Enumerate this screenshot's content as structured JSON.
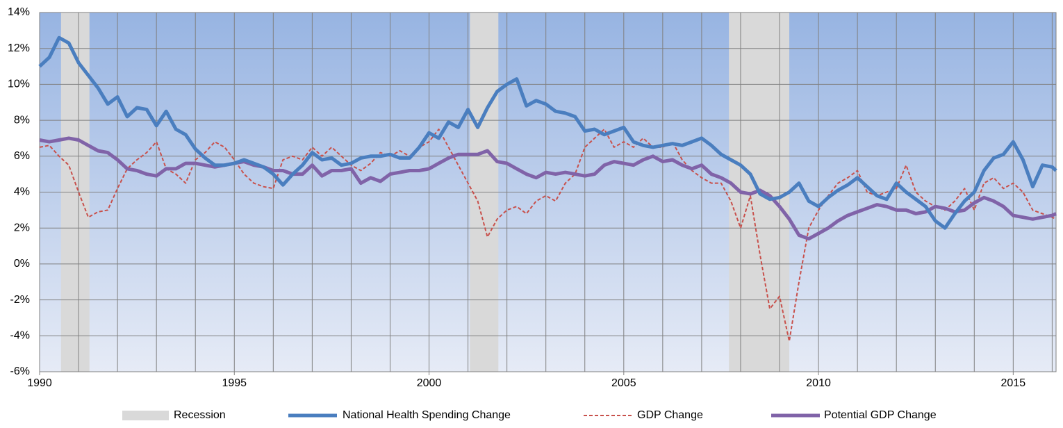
{
  "chart_data": {
    "type": "line",
    "x": [
      1990,
      1990.25,
      1990.5,
      1990.75,
      1991,
      1991.25,
      1991.5,
      1991.75,
      1992,
      1992.25,
      1992.5,
      1992.75,
      1993,
      1993.25,
      1993.5,
      1993.75,
      1994,
      1994.25,
      1994.5,
      1994.75,
      1995,
      1995.25,
      1995.5,
      1995.75,
      1996,
      1996.25,
      1996.5,
      1996.75,
      1997,
      1997.25,
      1997.5,
      1997.75,
      1998,
      1998.25,
      1998.5,
      1998.75,
      1999,
      1999.25,
      1999.5,
      1999.75,
      2000,
      2000.25,
      2000.5,
      2000.75,
      2001,
      2001.25,
      2001.5,
      2001.75,
      2002,
      2002.25,
      2002.5,
      2002.75,
      2003,
      2003.25,
      2003.5,
      2003.75,
      2004,
      2004.25,
      2004.5,
      2004.75,
      2005,
      2005.25,
      2005.5,
      2005.75,
      2006,
      2006.25,
      2006.5,
      2006.75,
      2007,
      2007.25,
      2007.5,
      2007.75,
      2008,
      2008.25,
      2008.5,
      2008.75,
      2009,
      2009.25,
      2009.5,
      2009.75,
      2010,
      2010.25,
      2010.5,
      2010.75,
      2011,
      2011.25,
      2011.5,
      2011.75,
      2012,
      2012.25,
      2012.5,
      2012.75,
      2013,
      2013.25,
      2013.5,
      2013.75,
      2014,
      2014.25,
      2014.5,
      2014.75,
      2015,
      2015.25,
      2015.5,
      2015.75,
      2016,
      2016.1
    ],
    "recession_label": "Recession",
    "recession_color": "#d9d9d9",
    "recessions": [
      {
        "start": 1990.55,
        "end": 1991.28
      },
      {
        "start": 2001.05,
        "end": 2001.78
      },
      {
        "start": 2007.7,
        "end": 2009.25
      }
    ],
    "series": [
      {
        "name": "National Health Spending Change",
        "color": "#4a7ebf",
        "dashed": false,
        "width": 5,
        "values": [
          11.0,
          11.5,
          12.6,
          12.3,
          11.2,
          10.5,
          9.8,
          8.9,
          9.3,
          8.2,
          8.7,
          8.6,
          7.7,
          8.5,
          7.5,
          7.2,
          6.4,
          5.9,
          5.5,
          5.5,
          5.6,
          5.8,
          5.6,
          5.4,
          5.0,
          4.4,
          5.0,
          5.5,
          6.2,
          5.8,
          5.9,
          5.5,
          5.6,
          5.9,
          6.0,
          6.0,
          6.1,
          5.9,
          5.9,
          6.5,
          7.3,
          7.0,
          7.9,
          7.6,
          8.6,
          7.6,
          8.7,
          9.6,
          10.0,
          10.3,
          8.8,
          9.1,
          8.9,
          8.5,
          8.4,
          8.2,
          7.4,
          7.5,
          7.2,
          7.4,
          7.6,
          6.8,
          6.6,
          6.5,
          6.6,
          6.7,
          6.6,
          6.8,
          7.0,
          6.6,
          6.1,
          5.8,
          5.5,
          5.0,
          3.9,
          3.6,
          3.7,
          4.0,
          4.5,
          3.5,
          3.2,
          3.7,
          4.1,
          4.4,
          4.8,
          4.3,
          3.8,
          3.6,
          4.5,
          4.0,
          3.6,
          3.2,
          2.4,
          2.0,
          2.8,
          3.5,
          4.0,
          5.2,
          5.9,
          6.1,
          6.8,
          5.8,
          4.3,
          5.5,
          5.4,
          5.2
        ]
      },
      {
        "name": "GDP Change",
        "color": "#c8504b",
        "dashed": true,
        "width": 2,
        "values": [
          6.5,
          6.6,
          6.0,
          5.5,
          4.0,
          2.6,
          2.9,
          3.0,
          4.2,
          5.3,
          5.8,
          6.2,
          6.8,
          5.3,
          5.0,
          4.5,
          5.8,
          6.2,
          6.8,
          6.5,
          5.8,
          5.0,
          4.5,
          4.3,
          4.2,
          5.8,
          6.0,
          5.8,
          6.5,
          6.0,
          6.5,
          6.0,
          5.5,
          5.2,
          5.6,
          6.2,
          6.0,
          6.3,
          6.0,
          6.5,
          6.8,
          7.5,
          6.5,
          5.5,
          4.5,
          3.5,
          1.5,
          2.5,
          3.0,
          3.2,
          2.8,
          3.5,
          3.8,
          3.5,
          4.5,
          5.0,
          6.5,
          7.0,
          7.5,
          6.5,
          6.8,
          6.5,
          7.0,
          6.5,
          6.5,
          6.8,
          5.8,
          5.2,
          4.8,
          4.5,
          4.5,
          3.5,
          2.0,
          3.8,
          0.5,
          -2.5,
          -1.8,
          -4.3,
          -1.0,
          2.0,
          3.0,
          3.8,
          4.5,
          4.8,
          5.2,
          4.0,
          3.8,
          4.0,
          4.2,
          5.5,
          4.0,
          3.5,
          3.2,
          3.0,
          3.5,
          4.2,
          3.0,
          4.5,
          4.8,
          4.2,
          4.5,
          4.0,
          3.0,
          2.8,
          2.6,
          2.5
        ]
      },
      {
        "name": "Potential GDP Change",
        "color": "#8063a8",
        "dashed": false,
        "width": 5,
        "values": [
          6.9,
          6.8,
          6.9,
          7.0,
          6.9,
          6.6,
          6.3,
          6.2,
          5.8,
          5.3,
          5.2,
          5.0,
          4.9,
          5.3,
          5.3,
          5.6,
          5.6,
          5.5,
          5.4,
          5.5,
          5.6,
          5.7,
          5.5,
          5.4,
          5.2,
          5.2,
          5.0,
          5.0,
          5.5,
          4.9,
          5.2,
          5.2,
          5.3,
          4.5,
          4.8,
          4.6,
          5.0,
          5.1,
          5.2,
          5.2,
          5.3,
          5.6,
          5.9,
          6.1,
          6.1,
          6.1,
          6.3,
          5.7,
          5.6,
          5.3,
          5.0,
          4.8,
          5.1,
          5.0,
          5.1,
          5.0,
          4.9,
          5.0,
          5.5,
          5.7,
          5.6,
          5.5,
          5.8,
          6.0,
          5.7,
          5.8,
          5.5,
          5.3,
          5.5,
          5.0,
          4.8,
          4.5,
          4.0,
          3.9,
          4.1,
          3.8,
          3.2,
          2.5,
          1.6,
          1.4,
          1.7,
          2.0,
          2.4,
          2.7,
          2.9,
          3.1,
          3.3,
          3.2,
          3.0,
          3.0,
          2.8,
          2.9,
          3.2,
          3.1,
          2.9,
          3.0,
          3.4,
          3.7,
          3.5,
          3.2,
          2.7,
          2.6,
          2.5,
          2.6,
          2.7,
          2.8
        ]
      }
    ],
    "xlim": [
      1990,
      2016.1
    ],
    "xticks": [
      1990,
      1995,
      2000,
      2005,
      2010,
      2015
    ],
    "x_gridlines": [
      1991,
      1992,
      1993,
      1994,
      1995,
      1996,
      1997,
      1998,
      1999,
      2000,
      2001,
      2002,
      2003,
      2004,
      2005,
      2006,
      2007,
      2008,
      2009,
      2010,
      2011,
      2012,
      2013,
      2014,
      2015,
      2016
    ],
    "ylim": [
      -6,
      14
    ],
    "yticks": [
      {
        "value": -6,
        "label": "-6%"
      },
      {
        "value": -4,
        "label": "-4%"
      },
      {
        "value": -2,
        "label": "-2%"
      },
      {
        "value": 0,
        "label": "0%"
      },
      {
        "value": 2,
        "label": "2%"
      },
      {
        "value": 4,
        "label": "4%"
      },
      {
        "value": 6,
        "label": "6%"
      },
      {
        "value": 8,
        "label": "8%"
      },
      {
        "value": 10,
        "label": "10%"
      },
      {
        "value": 12,
        "label": "12%"
      },
      {
        "value": 14,
        "label": "14%"
      }
    ],
    "grid": true,
    "legend": "bottom"
  }
}
